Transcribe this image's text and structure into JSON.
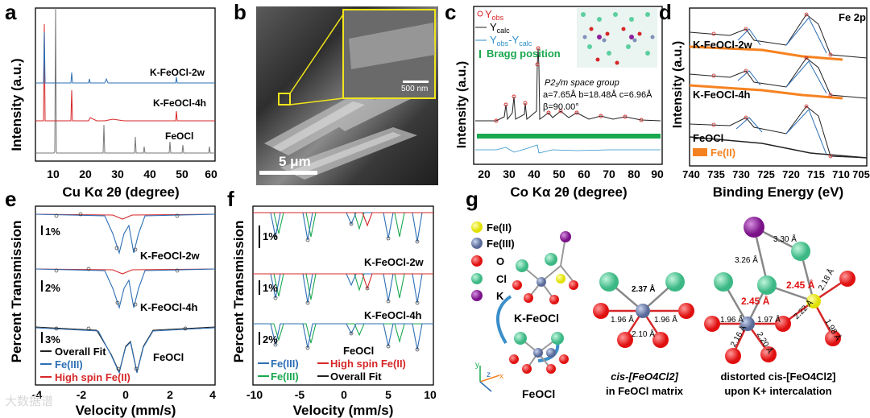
{
  "panels": {
    "a": {
      "label": "a",
      "ylabel": "Intensity (a.u.)",
      "xlabel": "Cu Kα 2θ (degree)",
      "xticks": [
        "10",
        "20",
        "30",
        "40",
        "50",
        "60"
      ],
      "curves": [
        "K-FeOCl-2w",
        "K-FeOCl-4h",
        "FeOCl"
      ]
    },
    "b": {
      "label": "b",
      "scale_main": "5 μm",
      "scale_inset": "500 nm"
    },
    "c": {
      "label": "c",
      "ylabel": "Intensity (a.u.)",
      "xlabel": "Co Kα 2θ (degree)",
      "xticks": [
        "20",
        "30",
        "40",
        "50",
        "60",
        "70",
        "80",
        "90"
      ],
      "legend": {
        "obs": "Y",
        "obs_sub": "obs",
        "calc": "Y",
        "calc_sub": "calc",
        "diff": "Y",
        "diff_sub1": "obs",
        "diff_mid": "-Y",
        "diff_sub2": "calc",
        "bragg": "Bragg position"
      },
      "space_group": "P2₁/m space group",
      "lattice": "a=7.65Å b=18.48Å c=6.96Å",
      "beta": "β=90.00°"
    },
    "d": {
      "label": "d",
      "ylabel": "Intensity (a.u.)",
      "xlabel": "Binding Energy (eV)",
      "xticks": [
        "740",
        "735",
        "730",
        "725",
        "720",
        "715",
        "710",
        "705"
      ],
      "title": "Fe 2p",
      "curves": [
        "K-FeOCl-2w",
        "K-FeOCl-4h",
        "FeOCl"
      ],
      "legend": "Fe(II)"
    },
    "e": {
      "label": "e",
      "ylabel": "Percent Transmission",
      "xlabel": "Velocity (mm/s)",
      "xticks": [
        "-4",
        "-2",
        "0",
        "2",
        "4"
      ],
      "scales": [
        "1%",
        "2%",
        "3%"
      ],
      "curves": [
        "K-FeOCl-2w",
        "K-FeOCl-4h",
        "FeOCl"
      ],
      "legend": [
        "Overall Fit",
        "Fe(III)",
        "High spin Fe(II)"
      ]
    },
    "f": {
      "label": "f",
      "ylabel": "Percent Transmission",
      "xlabel": "Velocity (mm/s)",
      "xticks": [
        "-10",
        "-5",
        "0",
        "5",
        "10"
      ],
      "scales": [
        "1%",
        "1%",
        "2%"
      ],
      "curves": [
        "K-FeOCl-2w",
        "K-FeOCl-4h",
        "FeOCl"
      ],
      "legend": [
        "Fe(III)",
        "High spin Fe(II)",
        "Fe(III)",
        "Overall Fit"
      ]
    },
    "g": {
      "label": "g",
      "legend": [
        "Fe(II)",
        "Fe(III)",
        "O",
        "Cl",
        "K"
      ],
      "struct_top": "K-FeOCl",
      "struct_bottom": "FeOCl",
      "axes": [
        "y",
        "z",
        "x"
      ],
      "middle": {
        "bonds": [
          "2.37 Å",
          "1.96 Å",
          "1.96 Å",
          "2.10 Å"
        ],
        "caption1": "cis-[FeO4Cl2]",
        "caption2": "in FeOCl matrix"
      },
      "right": {
        "bonds": [
          "3.30 Å",
          "3.26 Å",
          "2.45 Å",
          "2.18 Å",
          "2.45 Å",
          "2.22 Å",
          "1.96 Å",
          "1.97 Å",
          "1.98 Å",
          "2.16 Å",
          "2.20 Å"
        ],
        "caption1": "distorted cis-[FeO4Cl2]",
        "caption2": "upon K+ intercalation"
      }
    }
  },
  "watermark": "大数据谱",
  "colors": {
    "red": "#d62728",
    "blue": "#2d6fb5",
    "green": "#1aa84f",
    "orange": "#f58220",
    "purple": "#8e1f9c",
    "yellow": "#f2f21a",
    "cl": "#5ccfa0",
    "fe3": "#8090b8"
  }
}
